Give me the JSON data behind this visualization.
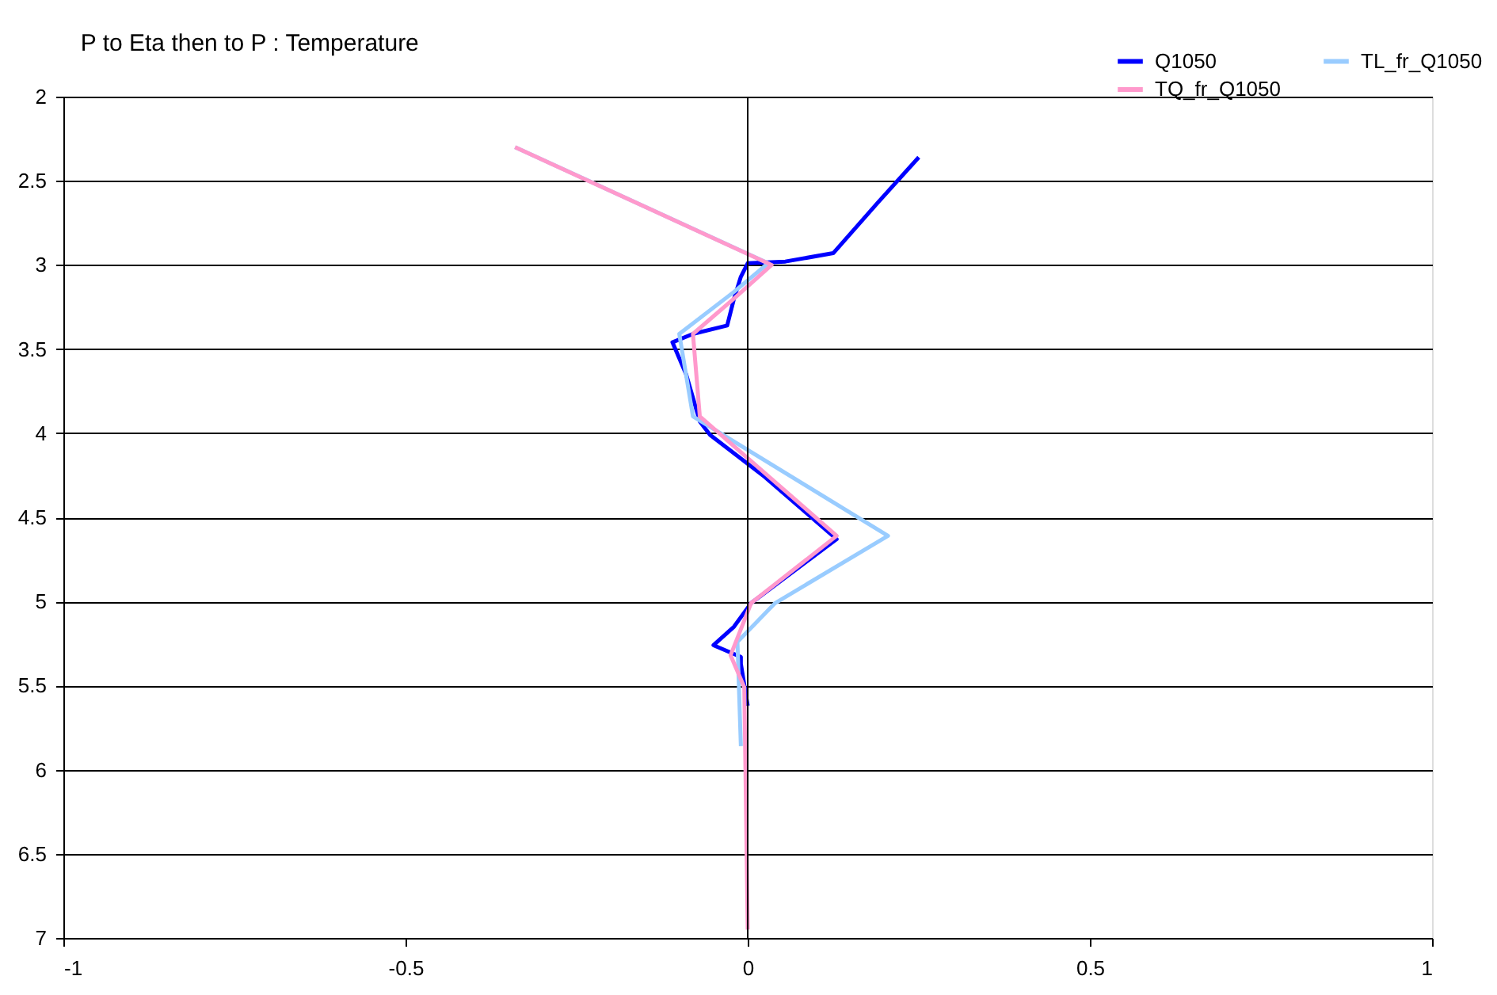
{
  "chart_data": {
    "type": "line",
    "title": "P to Eta then to P :  Temperature",
    "series": [
      {
        "name": "Q1050",
        "color": "#0000ff",
        "x": [
          0.25,
          0.19,
          0.125,
          0.055,
          0.0,
          -0.01,
          -0.02,
          -0.03,
          -0.08,
          -0.11,
          -0.09,
          -0.07,
          -0.055,
          0.025,
          0.13,
          0.005,
          -0.02,
          -0.05,
          -0.01,
          -0.01,
          0.0
        ],
        "values": [
          2.36,
          2.63,
          2.93,
          2.98,
          2.99,
          3.07,
          3.2,
          3.36,
          3.41,
          3.46,
          3.65,
          3.93,
          4.01,
          4.26,
          4.63,
          5.01,
          5.15,
          5.26,
          5.33,
          5.37,
          5.62
        ]
      },
      {
        "name": "TL_fr_Q1050",
        "color": "#99ccff",
        "x": [
          -0.34,
          0.03,
          -0.02,
          -0.1,
          -0.08,
          0.205,
          0.04,
          -0.015,
          -0.01
        ],
        "values": [
          2.3,
          2.99,
          3.16,
          3.41,
          3.9,
          4.61,
          5.01,
          5.24,
          5.86
        ]
      },
      {
        "name": "TQ_fr_Q1050",
        "color": "#ff99cc",
        "x": [
          -0.34,
          0.035,
          -0.02,
          -0.08,
          -0.07,
          0.13,
          0.005,
          -0.025,
          -0.005,
          0.0
        ],
        "values": [
          2.3,
          3.0,
          3.2,
          3.41,
          3.9,
          4.61,
          5.01,
          5.32,
          5.51,
          6.95
        ]
      }
    ],
    "xlim": [
      -1,
      1
    ],
    "xticks": [
      -1,
      -0.5,
      0,
      0.5,
      1
    ],
    "ylim": [
      7,
      2
    ],
    "yticks": [
      2,
      2.5,
      3,
      3.5,
      4,
      4.5,
      5,
      5.5,
      6,
      6.5,
      7
    ],
    "ref_lines": [
      {
        "axis": "x",
        "value": 0
      }
    ],
    "grid": "y",
    "legend": "top right",
    "marker": "none",
    "line_style": "solid"
  }
}
